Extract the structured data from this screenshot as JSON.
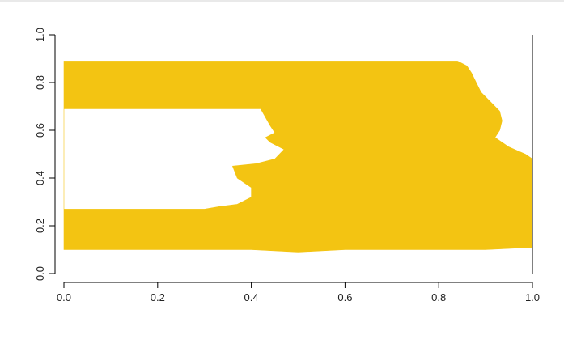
{
  "chart_data": {
    "type": "area",
    "title": "",
    "xlabel": "",
    "ylabel": "",
    "xlim": [
      0,
      1
    ],
    "ylim": [
      0,
      1
    ],
    "x_ticks": [
      "0.0",
      "0.2",
      "0.4",
      "0.6",
      "0.8",
      "1.0"
    ],
    "y_ticks": [
      "0.0",
      "0.2",
      "0.4",
      "0.6",
      "0.8",
      "1.0"
    ],
    "grid": false,
    "legend": "none",
    "fill_color": "#f3c412",
    "series": [
      {
        "upper_boundary": [
          [
            0.0,
            0.89
          ],
          [
            0.1,
            0.89
          ],
          [
            0.2,
            0.89
          ],
          [
            0.3,
            0.89
          ],
          [
            0.4,
            0.89
          ],
          [
            0.5,
            0.89
          ],
          [
            0.6,
            0.89
          ],
          [
            0.7,
            0.89
          ],
          [
            0.8,
            0.89
          ],
          [
            0.84,
            0.89
          ],
          [
            0.86,
            0.87
          ],
          [
            0.87,
            0.84
          ],
          [
            0.88,
            0.8
          ],
          [
            0.89,
            0.76
          ],
          [
            0.91,
            0.72
          ],
          [
            0.93,
            0.68
          ],
          [
            0.935,
            0.64
          ],
          [
            0.93,
            0.6
          ],
          [
            0.92,
            0.57
          ],
          [
            0.95,
            0.53
          ],
          [
            0.985,
            0.5
          ],
          [
            1.0,
            0.48
          ]
        ],
        "lower_boundary": [
          [
            0.0,
            0.1
          ],
          [
            0.1,
            0.1
          ],
          [
            0.2,
            0.1
          ],
          [
            0.3,
            0.1
          ],
          [
            0.4,
            0.1
          ],
          [
            0.5,
            0.09
          ],
          [
            0.6,
            0.1
          ],
          [
            0.7,
            0.1
          ],
          [
            0.8,
            0.1
          ],
          [
            0.9,
            0.1
          ],
          [
            1.0,
            0.11
          ]
        ],
        "hole_boundary": [
          [
            0.0,
            0.69
          ],
          [
            0.42,
            0.69
          ],
          [
            0.44,
            0.62
          ],
          [
            0.45,
            0.59
          ],
          [
            0.43,
            0.57
          ],
          [
            0.44,
            0.55
          ],
          [
            0.47,
            0.52
          ],
          [
            0.45,
            0.48
          ],
          [
            0.41,
            0.46
          ],
          [
            0.36,
            0.45
          ],
          [
            0.37,
            0.4
          ],
          [
            0.4,
            0.36
          ],
          [
            0.4,
            0.32
          ],
          [
            0.37,
            0.29
          ],
          [
            0.33,
            0.28
          ],
          [
            0.3,
            0.27
          ],
          [
            0.25,
            0.27
          ],
          [
            0.0,
            0.27
          ]
        ]
      }
    ]
  }
}
